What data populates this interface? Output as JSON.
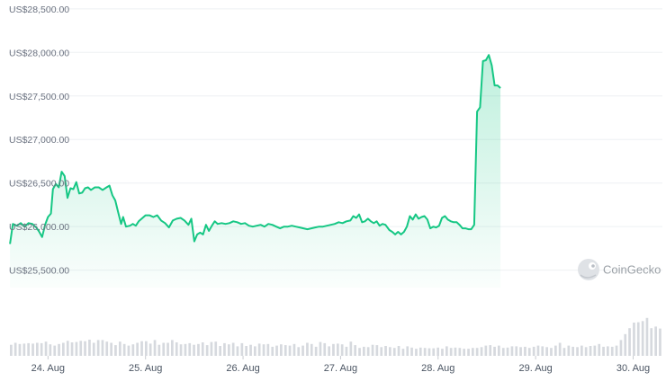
{
  "watermark": {
    "text": "CoinGecko",
    "icon": "gecko-logo-icon"
  },
  "colors": {
    "line": "#16c784",
    "area_top": "#16c784",
    "volume": "#d6d9de",
    "grid": "#eef0f3",
    "axis_text": "#6b7280"
  },
  "chart_data": {
    "type": "line",
    "title": "",
    "xlabel": "",
    "ylabel": "",
    "ylim": [
      25300,
      28550
    ],
    "y_ticks": [
      {
        "value": 28500,
        "label": "US$28,500.00"
      },
      {
        "value": 28000,
        "label": "US$28,000.00"
      },
      {
        "value": 27500,
        "label": "US$27,500.00"
      },
      {
        "value": 27000,
        "label": "US$27,000.00"
      },
      {
        "value": 26500,
        "label": "US$26,500.00"
      },
      {
        "value": 26000,
        "label": "US$26,000.00"
      },
      {
        "value": 25500,
        "label": "US$25,500.00"
      }
    ],
    "x_range": [
      23.6,
      30.3
    ],
    "x_ticks": [
      {
        "value": 24,
        "label": "24. Aug"
      },
      {
        "value": 25,
        "label": "25. Aug"
      },
      {
        "value": 26,
        "label": "26. Aug"
      },
      {
        "value": 27,
        "label": "27. Aug"
      },
      {
        "value": 28,
        "label": "28. Aug"
      },
      {
        "value": 29,
        "label": "29. Aug"
      },
      {
        "value": 30,
        "label": "30. Aug"
      }
    ],
    "grid": true,
    "legend": "none",
    "series": [
      {
        "points": [
          [
            23.61,
            25800
          ],
          [
            23.64,
            26030
          ],
          [
            23.68,
            26010
          ],
          [
            23.72,
            26040
          ],
          [
            23.76,
            26000
          ],
          [
            23.8,
            26040
          ],
          [
            23.84,
            26030
          ],
          [
            23.88,
            25990
          ],
          [
            23.91,
            25940
          ],
          [
            23.94,
            25880
          ],
          [
            23.97,
            26020
          ],
          [
            24.0,
            26110
          ],
          [
            24.03,
            26150
          ],
          [
            24.05,
            26430
          ],
          [
            24.08,
            26490
          ],
          [
            24.11,
            26450
          ],
          [
            24.14,
            26630
          ],
          [
            24.17,
            26580
          ],
          [
            24.2,
            26330
          ],
          [
            24.23,
            26440
          ],
          [
            24.26,
            26430
          ],
          [
            24.29,
            26510
          ],
          [
            24.32,
            26380
          ],
          [
            24.35,
            26390
          ],
          [
            24.38,
            26440
          ],
          [
            24.41,
            26450
          ],
          [
            24.44,
            26420
          ],
          [
            24.48,
            26450
          ],
          [
            24.52,
            26450
          ],
          [
            24.56,
            26420
          ],
          [
            24.6,
            26450
          ],
          [
            24.63,
            26470
          ],
          [
            24.66,
            26360
          ],
          [
            24.69,
            26300
          ],
          [
            24.72,
            26160
          ],
          [
            24.75,
            26030
          ],
          [
            24.77,
            26110
          ],
          [
            24.8,
            26000
          ],
          [
            24.84,
            26010
          ],
          [
            24.87,
            26030
          ],
          [
            24.9,
            26010
          ],
          [
            24.93,
            26060
          ],
          [
            24.96,
            26090
          ],
          [
            25.0,
            26130
          ],
          [
            25.04,
            26130
          ],
          [
            25.08,
            26110
          ],
          [
            25.12,
            26130
          ],
          [
            25.16,
            26070
          ],
          [
            25.2,
            26040
          ],
          [
            25.24,
            25990
          ],
          [
            25.28,
            26070
          ],
          [
            25.32,
            26090
          ],
          [
            25.36,
            26100
          ],
          [
            25.4,
            26070
          ],
          [
            25.44,
            26020
          ],
          [
            25.47,
            26090
          ],
          [
            25.5,
            25830
          ],
          [
            25.53,
            25910
          ],
          [
            25.56,
            25930
          ],
          [
            25.59,
            25910
          ],
          [
            25.62,
            26020
          ],
          [
            25.65,
            25950
          ],
          [
            25.68,
            26010
          ],
          [
            25.71,
            26060
          ],
          [
            25.74,
            26030
          ],
          [
            25.78,
            26040
          ],
          [
            25.82,
            26030
          ],
          [
            25.86,
            26040
          ],
          [
            25.9,
            26060
          ],
          [
            25.94,
            26050
          ],
          [
            25.98,
            26030
          ],
          [
            26.02,
            26040
          ],
          [
            26.06,
            26010
          ],
          [
            26.1,
            26000
          ],
          [
            26.14,
            26010
          ],
          [
            26.18,
            26020
          ],
          [
            26.22,
            26000
          ],
          [
            26.26,
            26030
          ],
          [
            26.3,
            26020
          ],
          [
            26.34,
            26000
          ],
          [
            26.38,
            25980
          ],
          [
            26.42,
            26000
          ],
          [
            26.46,
            26000
          ],
          [
            26.5,
            26010
          ],
          [
            26.54,
            26000
          ],
          [
            26.58,
            25990
          ],
          [
            26.62,
            25980
          ],
          [
            26.66,
            25970
          ],
          [
            26.7,
            25980
          ],
          [
            26.74,
            25990
          ],
          [
            26.78,
            26000
          ],
          [
            26.82,
            26000
          ],
          [
            26.86,
            26010
          ],
          [
            26.9,
            26020
          ],
          [
            26.94,
            26030
          ],
          [
            26.98,
            26050
          ],
          [
            27.02,
            26040
          ],
          [
            27.06,
            26060
          ],
          [
            27.1,
            26070
          ],
          [
            27.13,
            26120
          ],
          [
            27.16,
            26100
          ],
          [
            27.19,
            26140
          ],
          [
            27.22,
            26050
          ],
          [
            27.25,
            26060
          ],
          [
            27.28,
            26090
          ],
          [
            27.31,
            26060
          ],
          [
            27.34,
            26040
          ],
          [
            27.37,
            26060
          ],
          [
            27.4,
            26010
          ],
          [
            27.43,
            26030
          ],
          [
            27.46,
            26020
          ],
          [
            27.5,
            25960
          ],
          [
            27.53,
            25940
          ],
          [
            27.56,
            25910
          ],
          [
            27.59,
            25940
          ],
          [
            27.62,
            25910
          ],
          [
            27.65,
            25940
          ],
          [
            27.68,
            26000
          ],
          [
            27.71,
            26120
          ],
          [
            27.74,
            26080
          ],
          [
            27.77,
            26140
          ],
          [
            27.8,
            26090
          ],
          [
            27.83,
            26110
          ],
          [
            27.86,
            26120
          ],
          [
            27.89,
            26080
          ],
          [
            27.92,
            25980
          ],
          [
            27.95,
            26000
          ],
          [
            27.98,
            25990
          ],
          [
            28.01,
            26010
          ],
          [
            28.04,
            26100
          ],
          [
            28.07,
            26120
          ],
          [
            28.1,
            26080
          ],
          [
            28.13,
            26060
          ],
          [
            28.16,
            26050
          ],
          [
            28.19,
            26050
          ],
          [
            28.22,
            26020
          ],
          [
            28.25,
            25980
          ],
          [
            28.28,
            25980
          ],
          [
            28.31,
            25970
          ],
          [
            28.34,
            25970
          ],
          [
            28.37,
            26020
          ],
          [
            28.4,
            27320
          ],
          [
            28.43,
            27370
          ],
          [
            28.46,
            27900
          ],
          [
            28.49,
            27910
          ],
          [
            28.52,
            27970
          ],
          [
            28.55,
            27850
          ],
          [
            28.58,
            27620
          ],
          [
            28.61,
            27620
          ],
          [
            28.64,
            27590
          ]
        ]
      }
    ],
    "volume": [
      0.28,
      0.33,
      0.3,
      0.31,
      0.32,
      0.31,
      0.33,
      0.32,
      0.36,
      0.29,
      0.26,
      0.3,
      0.33,
      0.38,
      0.34,
      0.35,
      0.38,
      0.37,
      0.41,
      0.33,
      0.4,
      0.4,
      0.36,
      0.33,
      0.27,
      0.36,
      0.3,
      0.26,
      0.29,
      0.33,
      0.37,
      0.37,
      0.31,
      0.4,
      0.28,
      0.33,
      0.33,
      0.4,
      0.34,
      0.29,
      0.3,
      0.32,
      0.28,
      0.3,
      0.34,
      0.27,
      0.35,
      0.36,
      0.25,
      0.32,
      0.29,
      0.33,
      0.24,
      0.32,
      0.25,
      0.28,
      0.24,
      0.31,
      0.29,
      0.3,
      0.23,
      0.26,
      0.29,
      0.27,
      0.26,
      0.3,
      0.22,
      0.26,
      0.33,
      0.3,
      0.23,
      0.35,
      0.32,
      0.24,
      0.3,
      0.31,
      0.29,
      0.23,
      0.36,
      0.27,
      0.2,
      0.23,
      0.22,
      0.28,
      0.27,
      0.22,
      0.25,
      0.22,
      0.2,
      0.25,
      0.18,
      0.24,
      0.21,
      0.18,
      0.21,
      0.2,
      0.19,
      0.19,
      0.21,
      0.18,
      0.24,
      0.2,
      0.21,
      0.2,
      0.18,
      0.18,
      0.2,
      0.2,
      0.22,
      0.26,
      0.27,
      0.23,
      0.26,
      0.2,
      0.21,
      0.24,
      0.24,
      0.22,
      0.23,
      0.2,
      0.23,
      0.26,
      0.24,
      0.22,
      0.2,
      0.26,
      0.33,
      0.2,
      0.26,
      0.23,
      0.22,
      0.26,
      0.22,
      0.25,
      0.26,
      0.3,
      0.23,
      0.24,
      0.23,
      0.26,
      0.4,
      0.55,
      0.7,
      0.84,
      0.85,
      0.88,
      0.96,
      0.7,
      0.74,
      0.69
    ]
  }
}
